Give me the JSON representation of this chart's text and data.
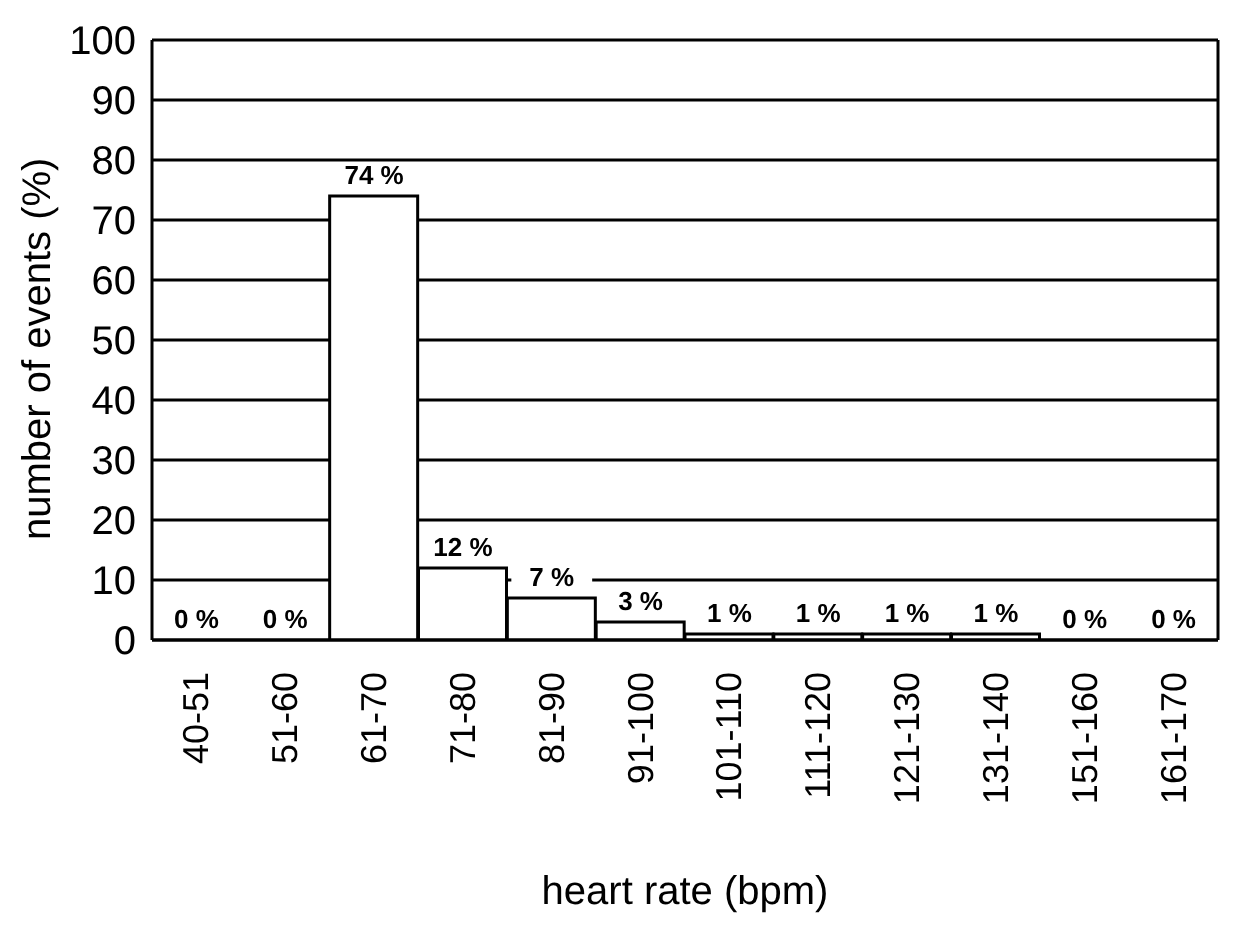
{
  "chart_data": {
    "type": "bar",
    "xlabel": "heart rate (bpm)",
    "ylabel": "number of events (%)",
    "categories": [
      "40-51",
      "51-60",
      "61-70",
      "71-80",
      "81-90",
      "91-100",
      "101-110",
      "111-120",
      "121-130",
      "131-140",
      "151-160",
      "161-170"
    ],
    "values": [
      0,
      0,
      74,
      12,
      7,
      3,
      1,
      1,
      1,
      1,
      0,
      0
    ],
    "value_labels": [
      "0 %",
      "0 %",
      "74 %",
      "12 %",
      "7 %",
      "3 %",
      "1 %",
      "1 %",
      "1 %",
      "1 %",
      "0 %",
      "0 %"
    ],
    "color": "#ffffff",
    "ylim": [
      0,
      100
    ],
    "yticks": [
      0,
      10,
      20,
      30,
      40,
      50,
      60,
      70,
      80,
      90,
      100
    ],
    "grid": "y"
  }
}
